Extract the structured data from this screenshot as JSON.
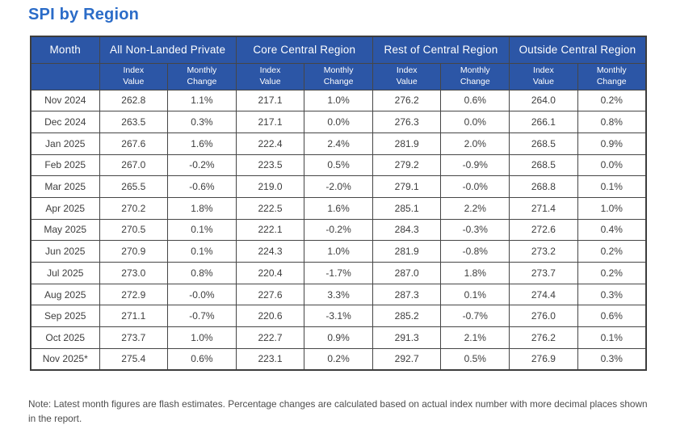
{
  "title": "SPI by Region",
  "colors": {
    "title_blue": "#2b6cc8",
    "header_blue": "#2c56a6",
    "border_dark": "#464646",
    "body_text": "#3d3d3d"
  },
  "table": {
    "month_header": "Month",
    "groups": [
      {
        "label": "All Non-Landed Private"
      },
      {
        "label": "Core Central Region"
      },
      {
        "label": "Rest of Central Region"
      },
      {
        "label": "Outside Central Region"
      }
    ],
    "sub_index": "Index\nValue",
    "sub_monthly": "Monthly\nChange",
    "rows": [
      [
        "Nov 2024",
        "262.8",
        "1.1%",
        "217.1",
        "1.0%",
        "276.2",
        "0.6%",
        "264.0",
        "0.2%"
      ],
      [
        "Dec 2024",
        "263.5",
        "0.3%",
        "217.1",
        "0.0%",
        "276.3",
        "0.0%",
        "266.1",
        "0.8%"
      ],
      [
        "Jan 2025",
        "267.6",
        "1.6%",
        "222.4",
        "2.4%",
        "281.9",
        "2.0%",
        "268.5",
        "0.9%"
      ],
      [
        "Feb 2025",
        "267.0",
        "-0.2%",
        "223.5",
        "0.5%",
        "279.2",
        "-0.9%",
        "268.5",
        "0.0%"
      ],
      [
        "Mar 2025",
        "265.5",
        "-0.6%",
        "219.0",
        "-2.0%",
        "279.1",
        "-0.0%",
        "268.8",
        "0.1%"
      ],
      [
        "Apr 2025",
        "270.2",
        "1.8%",
        "222.5",
        "1.6%",
        "285.1",
        "2.2%",
        "271.4",
        "1.0%"
      ],
      [
        "May 2025",
        "270.5",
        "0.1%",
        "222.1",
        "-0.2%",
        "284.3",
        "-0.3%",
        "272.6",
        "0.4%"
      ],
      [
        "Jun 2025",
        "270.9",
        "0.1%",
        "224.3",
        "1.0%",
        "281.9",
        "-0.8%",
        "273.2",
        "0.2%"
      ],
      [
        "Jul 2025",
        "273.0",
        "0.8%",
        "220.4",
        "-1.7%",
        "287.0",
        "1.8%",
        "273.7",
        "0.2%"
      ],
      [
        "Aug 2025",
        "272.9",
        "-0.0%",
        "227.6",
        "3.3%",
        "287.3",
        "0.1%",
        "274.4",
        "0.3%"
      ],
      [
        "Sep 2025",
        "271.1",
        "-0.7%",
        "220.6",
        "-3.1%",
        "285.2",
        "-0.7%",
        "276.0",
        "0.6%"
      ],
      [
        "Oct 2025",
        "273.7",
        "1.0%",
        "222.7",
        "0.9%",
        "291.3",
        "2.1%",
        "276.2",
        "0.1%"
      ],
      [
        "Nov 2025*",
        "275.4",
        "0.6%",
        "223.1",
        "0.2%",
        "292.7",
        "0.5%",
        "276.9",
        "0.3%"
      ]
    ]
  },
  "note": "Note: Latest month figures are flash estimates. Percentage changes are calculated based on actual index number with more decimal places shown in the report."
}
